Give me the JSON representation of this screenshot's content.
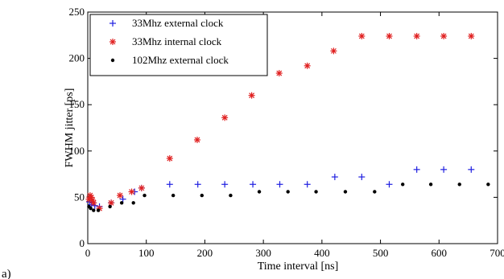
{
  "panel_label": "a)",
  "chart_data": {
    "type": "scatter",
    "xlabel": "Time interval [ns]",
    "ylabel": "FWHM jitter [ps]",
    "xlim": [
      0,
      700
    ],
    "ylim": [
      0,
      250
    ],
    "xticks": [
      0,
      100,
      200,
      300,
      400,
      500,
      600,
      700
    ],
    "yticks": [
      0,
      50,
      100,
      150,
      200,
      250
    ],
    "grid": false,
    "legend_position": "top-left",
    "series": [
      {
        "name": "33Mhz external clock",
        "marker": "plus",
        "color": "#1f1fe0",
        "points": [
          [
            3,
            45
          ],
          [
            6,
            42
          ],
          [
            9,
            44
          ],
          [
            12,
            41
          ],
          [
            20,
            40
          ],
          [
            40,
            44
          ],
          [
            60,
            48
          ],
          [
            80,
            56
          ],
          [
            92,
            60
          ],
          [
            140,
            64
          ],
          [
            188,
            64
          ],
          [
            234,
            64
          ],
          [
            282,
            64
          ],
          [
            328,
            64
          ],
          [
            375,
            64
          ],
          [
            422,
            72
          ],
          [
            468,
            72
          ],
          [
            515,
            64
          ],
          [
            562,
            80
          ],
          [
            608,
            80
          ],
          [
            655,
            80
          ]
        ]
      },
      {
        "name": "33Mhz internal clock",
        "marker": "asterisk",
        "color": "#e02020",
        "points": [
          [
            2,
            48
          ],
          [
            4,
            52
          ],
          [
            6,
            50
          ],
          [
            8,
            47
          ],
          [
            10,
            44
          ],
          [
            20,
            38
          ],
          [
            40,
            44
          ],
          [
            55,
            52
          ],
          [
            75,
            56
          ],
          [
            92,
            60
          ],
          [
            140,
            92
          ],
          [
            187,
            112
          ],
          [
            234,
            136
          ],
          [
            280,
            160
          ],
          [
            327,
            184
          ],
          [
            375,
            192
          ],
          [
            420,
            208
          ],
          [
            468,
            224
          ],
          [
            515,
            224
          ],
          [
            562,
            224
          ],
          [
            608,
            224
          ],
          [
            655,
            224
          ]
        ]
      },
      {
        "name": "102Mhz external clock",
        "marker": "dot",
        "color": "#000000",
        "points": [
          [
            2,
            40
          ],
          [
            5,
            38
          ],
          [
            10,
            36
          ],
          [
            18,
            36
          ],
          [
            38,
            40
          ],
          [
            58,
            44
          ],
          [
            78,
            44
          ],
          [
            97,
            52
          ],
          [
            146,
            52
          ],
          [
            195,
            52
          ],
          [
            244,
            52
          ],
          [
            293,
            56
          ],
          [
            342,
            56
          ],
          [
            390,
            56
          ],
          [
            440,
            56
          ],
          [
            490,
            56
          ],
          [
            538,
            64
          ],
          [
            586,
            64
          ],
          [
            635,
            64
          ],
          [
            684,
            64
          ]
        ]
      }
    ]
  }
}
